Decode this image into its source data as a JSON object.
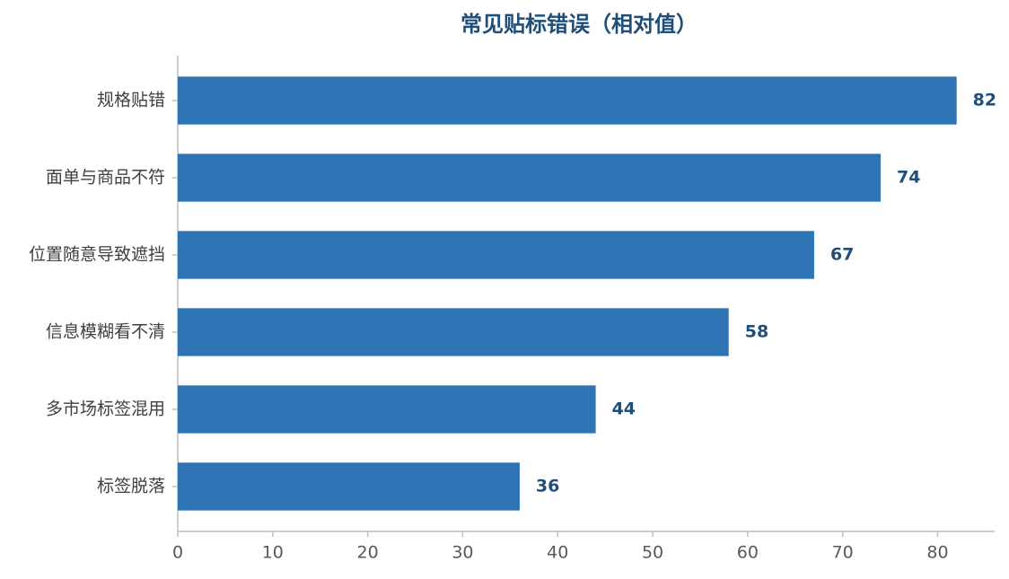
{
  "chart_data": {
    "type": "bar",
    "orientation": "horizontal",
    "title": "常见贴标错误（相对值）",
    "categories": [
      "规格贴错",
      "面单与商品不符",
      "位置随意导致遮挡",
      "信息模糊看不清",
      "多市场标签混用",
      "标签脱落"
    ],
    "values": [
      82,
      74,
      67,
      58,
      44,
      36
    ],
    "color": "#2e74b5",
    "xlim": [
      0,
      86
    ],
    "xticks": [
      0,
      10,
      20,
      30,
      40,
      50,
      60,
      70,
      80
    ],
    "grid": false
  }
}
